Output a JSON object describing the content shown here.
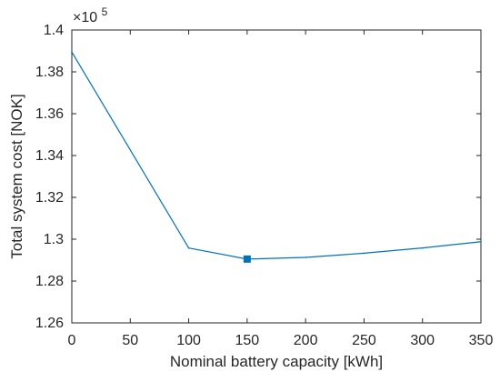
{
  "chart_data": {
    "type": "line",
    "title": "",
    "xlabel": "Nominal battery capacity [kWh]",
    "ylabel": "Total system cost [NOK]",
    "y_multiplier": {
      "base": "×10",
      "exponent": "5"
    },
    "xlim": [
      0,
      350
    ],
    "ylim": [
      1.26,
      1.4
    ],
    "x_ticks": [
      0,
      50,
      100,
      150,
      200,
      250,
      300,
      350
    ],
    "y_ticks": [
      1.26,
      1.28,
      1.3,
      1.32,
      1.34,
      1.36,
      1.38,
      1.4
    ],
    "x_tick_labels": [
      "0",
      "50",
      "100",
      "150",
      "200",
      "250",
      "300",
      "350"
    ],
    "y_tick_labels": [
      "1.26",
      "1.28",
      "1.3",
      "1.32",
      "1.34",
      "1.36",
      "1.38",
      "1.4"
    ],
    "grid": false,
    "series": [
      {
        "x": [
          0,
          100,
          150,
          200,
          250,
          300,
          350
        ],
        "y": [
          1.3895,
          1.2958,
          1.2905,
          1.2913,
          1.2933,
          1.2958,
          1.2988
        ],
        "color": "#0072BD"
      }
    ],
    "highlight_point": {
      "x": 150,
      "y": 1.2905,
      "marker": "square",
      "color": "#0072BD"
    }
  }
}
